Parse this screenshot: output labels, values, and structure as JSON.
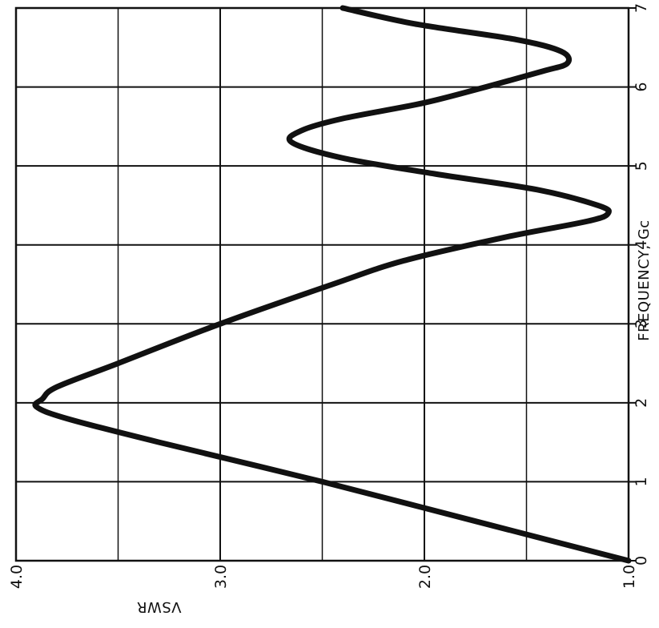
{
  "chart_data": {
    "type": "line",
    "xlabel": "FREQUENCY, Gc",
    "ylabel": "VSWR",
    "xlim": [
      0,
      7
    ],
    "ylim": [
      1.0,
      4.0
    ],
    "x_ticks": [
      "0",
      "1",
      "2",
      "3",
      "4",
      "5",
      "6",
      "7"
    ],
    "y_ticks": [
      "1.0",
      "2.0",
      "3.0",
      "4.0"
    ],
    "grid": true,
    "orientation": "rotated 90° clockwise (frequency runs bottom-to-top, VSWR increases right-to-left)",
    "line_color": "#111111",
    "series": [
      {
        "x": [
          0.0,
          0.5,
          1.0,
          1.5,
          1.8,
          1.95,
          2.05,
          2.2,
          2.5,
          3.0,
          3.5,
          3.8,
          4.1,
          4.3,
          4.4,
          4.5,
          4.7,
          4.9,
          5.1,
          5.3,
          5.45,
          5.6,
          5.8,
          6.0,
          6.2,
          6.3,
          6.45,
          6.6,
          6.8,
          7.0
        ],
        "y": [
          1.0,
          1.75,
          2.5,
          3.3,
          3.75,
          3.9,
          3.87,
          3.8,
          3.5,
          3.0,
          2.45,
          2.1,
          1.6,
          1.2,
          1.1,
          1.15,
          1.45,
          1.95,
          2.4,
          2.65,
          2.6,
          2.4,
          2.0,
          1.7,
          1.42,
          1.3,
          1.33,
          1.55,
          2.05,
          2.4
        ]
      }
    ]
  }
}
